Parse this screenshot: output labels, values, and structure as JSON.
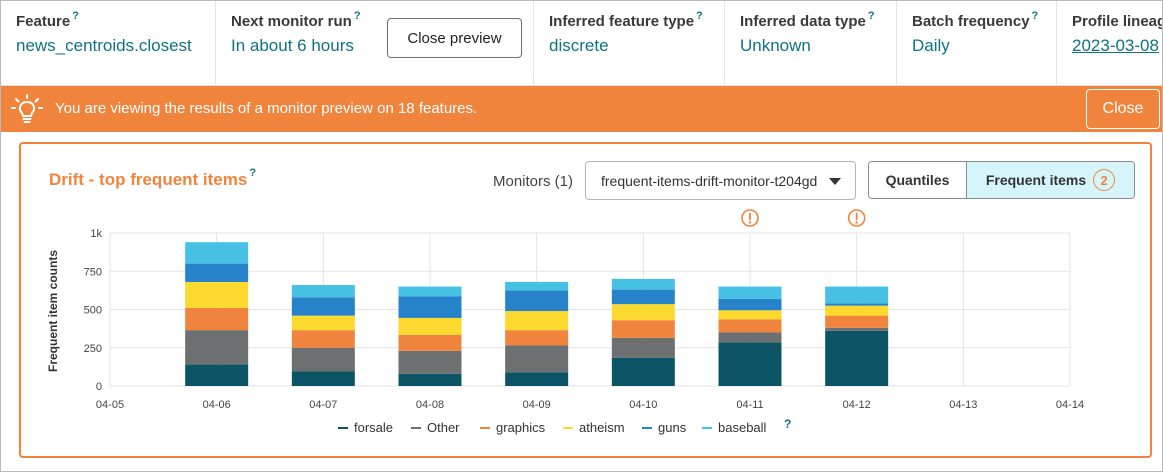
{
  "header": {
    "feature": {
      "label": "Feature",
      "help": "?",
      "value": "news_centroids.closest"
    },
    "next_run": {
      "label": "Next monitor run",
      "help": "?",
      "value": "In about 6 hours"
    },
    "close_preview_label": "Close preview",
    "feature_type": {
      "label": "Inferred feature type",
      "help": "?",
      "value": "discrete"
    },
    "data_type": {
      "label": "Inferred data type",
      "help": "?",
      "value": "Unknown"
    },
    "batch_freq": {
      "label": "Batch frequency",
      "help": "?",
      "value": "Daily"
    },
    "lineage": {
      "label": "Profile lineag",
      "value": "2023-03-08"
    }
  },
  "banner": {
    "text": "You are viewing the results of a monitor preview on 18 features.",
    "close_label": "Close",
    "icon": "lightbulb-icon"
  },
  "panel": {
    "title": "Drift - top frequent items",
    "title_help": "?",
    "monitors_label": "Monitors (1)",
    "monitor_selected": "frequent-items-drift-monitor-t204gd",
    "tab_quantiles": "Quantiles",
    "tab_frequent": "Frequent items",
    "frequent_badge": "2",
    "legend_help": "?",
    "alert_icon": "alert-circle-icon"
  },
  "colors": {
    "accent_orange": "#f0843c",
    "teal_text": "#0e7384",
    "selected_tab": "#d6f5fb"
  },
  "chart_data": {
    "type": "bar",
    "stacked": true,
    "ylabel": "Frequent item counts",
    "ylim": [
      0,
      1000
    ],
    "yticks": [
      "0",
      "250",
      "500",
      "750",
      "1k"
    ],
    "x_ticks": [
      "04-05",
      "04-06",
      "04-07",
      "04-08",
      "04-09",
      "04-10",
      "04-11",
      "04-12",
      "04-13",
      "04-14"
    ],
    "categories": [
      "04-06",
      "04-07",
      "04-08",
      "04-09",
      "04-10",
      "04-11",
      "04-12"
    ],
    "alerts": [
      "04-11",
      "04-12"
    ],
    "legend_position": "bottom",
    "grid": true,
    "series": [
      {
        "name": "forsale",
        "color": "#0b5566",
        "values": [
          140,
          95,
          80,
          90,
          185,
          285,
          360
        ]
      },
      {
        "name": "Other",
        "color": "#6c7071",
        "values": [
          225,
          155,
          150,
          175,
          130,
          65,
          20
        ]
      },
      {
        "name": "graphics",
        "color": "#f0843c",
        "values": [
          145,
          115,
          105,
          100,
          115,
          85,
          80
        ]
      },
      {
        "name": "atheism",
        "color": "#fbd92f",
        "values": [
          170,
          95,
          110,
          125,
          105,
          60,
          65
        ]
      },
      {
        "name": "guns",
        "color": "#2683c9",
        "values": [
          120,
          120,
          140,
          135,
          95,
          75,
          15
        ]
      },
      {
        "name": "baseball",
        "color": "#47c1e3",
        "values": [
          140,
          80,
          65,
          55,
          70,
          80,
          110
        ]
      }
    ]
  }
}
